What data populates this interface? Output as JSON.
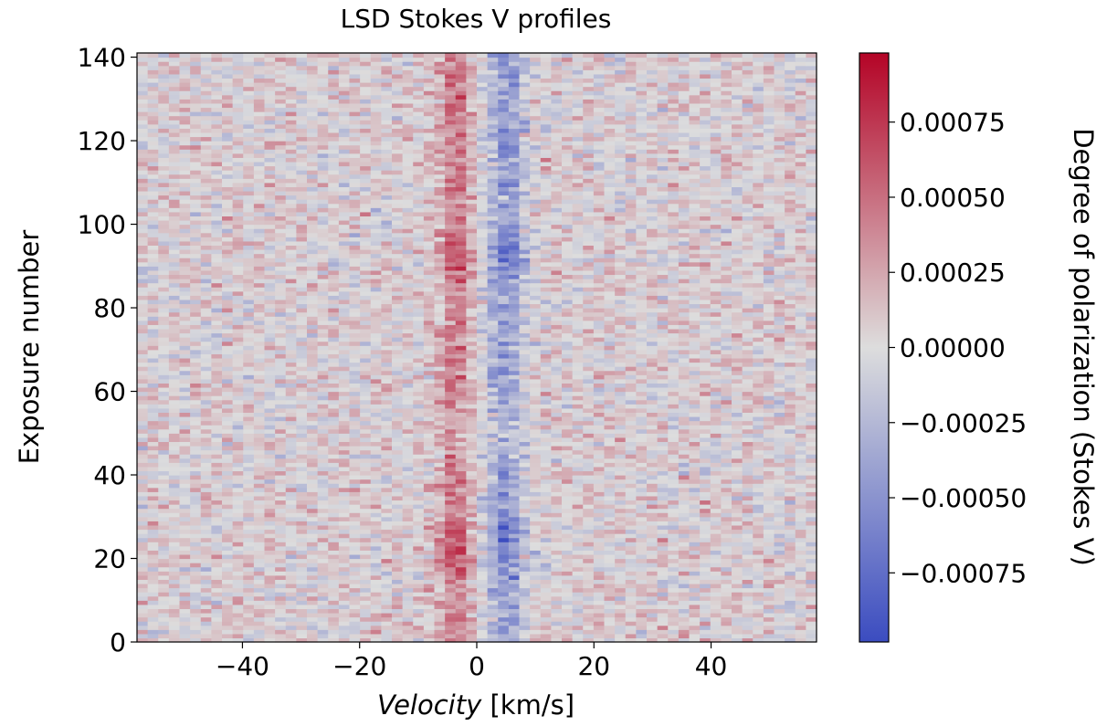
{
  "chart_data": {
    "type": "heatmap",
    "title": "LSD Stokes V profiles",
    "xlabel_italic": "Velocity",
    "xlabel_unit": " [km/s]",
    "ylabel": "Exposure number",
    "colorbar_label": "Degree of polarization (Stokes V)",
    "colormap": "coolwarm",
    "xlim": [
      -58,
      58
    ],
    "ylim": [
      0,
      141
    ],
    "x_step_kms": 1.8,
    "n_exposures": 141,
    "vmin": -0.00098,
    "vmax": 0.00098,
    "x_ticks": [
      -40,
      -20,
      0,
      20,
      40
    ],
    "x_tick_labels": [
      "−40",
      "−20",
      "0",
      "20",
      "40"
    ],
    "y_ticks": [
      0,
      20,
      40,
      60,
      80,
      100,
      120,
      140
    ],
    "y_tick_labels": [
      "0",
      "20",
      "40",
      "60",
      "80",
      "100",
      "120",
      "140"
    ],
    "colorbar_ticks": [
      0.00075,
      0.0005,
      0.00025,
      0.0,
      -0.00025,
      -0.0005,
      -0.00075
    ],
    "colorbar_tick_labels": [
      "0.00075",
      "0.00050",
      "0.00025",
      "0.00000",
      "−0.00025",
      "−0.00050",
      "−0.00075"
    ],
    "signal": {
      "positive_lobe_center_kms": -4,
      "negative_lobe_center_kms": 4.5,
      "lobe_width_kms": 3,
      "peak_amplitude": 0.00045,
      "continuum_bias": 4e-05,
      "noise_sigma": 0.00014
    },
    "colors": {
      "cool": "#3b4cc0",
      "mid": "#dddddd",
      "warm": "#b40426"
    }
  }
}
